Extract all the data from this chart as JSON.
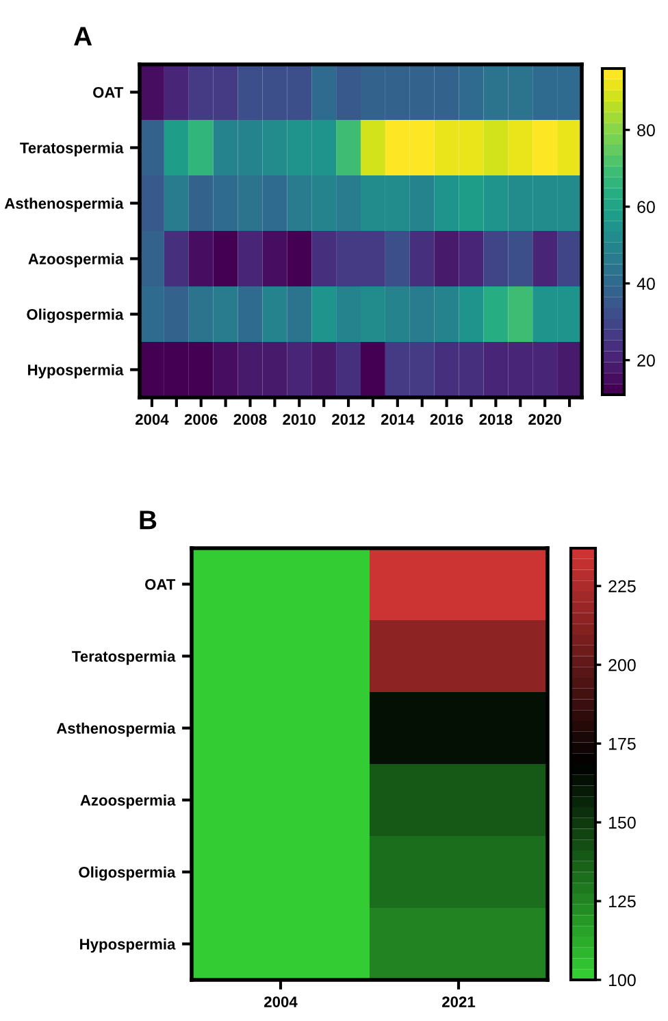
{
  "chart_data": [
    {
      "type": "heatmap",
      "title": "A",
      "categories": [
        "2004",
        null,
        "2006",
        null,
        "2008",
        null,
        "2010",
        null,
        "2012",
        null,
        "2014",
        null,
        "2016",
        null,
        "2018",
        null,
        "2020",
        null
      ],
      "y_categories": [
        "OAT",
        "Teratospermia",
        "Asthenospermia",
        "Azoospermia",
        "Oligospermia",
        "Hypospermia"
      ],
      "cells": [
        [
          15,
          22,
          26,
          27,
          32,
          33,
          33,
          42,
          35,
          37,
          37,
          37,
          37,
          41,
          43,
          44,
          40,
          40
        ],
        [
          38,
          57,
          67,
          50,
          50,
          52,
          54,
          54,
          70,
          90,
          95,
          95,
          92,
          93,
          88,
          91,
          96,
          92
        ],
        [
          36,
          45,
          38,
          41,
          43,
          40,
          46,
          49,
          46,
          51,
          51,
          49,
          55,
          58,
          56,
          53,
          52,
          52
        ],
        [
          37,
          23,
          16,
          13,
          20,
          16,
          13,
          23,
          26,
          27,
          32,
          24,
          19,
          21,
          28,
          32,
          20,
          29
        ],
        [
          41,
          38,
          44,
          46,
          42,
          49,
          43,
          54,
          49,
          53,
          49,
          46,
          50,
          55,
          62,
          69,
          54,
          55
        ],
        [
          13,
          13,
          11,
          14,
          18,
          19,
          20,
          17,
          25,
          13,
          26,
          26,
          23,
          23,
          22,
          21,
          21,
          18
        ]
      ],
      "clim": [
        11,
        96
      ],
      "cticks": [
        20,
        40,
        60,
        80
      ]
    },
    {
      "type": "heatmap",
      "title": "B",
      "categories": [
        "2004",
        "2021"
      ],
      "y_categories": [
        "OAT",
        "Teratospermia",
        "Asthenospermia",
        "Azoospermia",
        "Oligospermia",
        "Hypospermia"
      ],
      "cells": [
        [
          100,
          235
        ],
        [
          100,
          215
        ],
        [
          100,
          162
        ],
        [
          100,
          140
        ],
        [
          100,
          132
        ],
        [
          100,
          127
        ]
      ],
      "clim": [
        100,
        237
      ],
      "cticks": [
        100,
        125,
        150,
        175,
        200,
        225
      ]
    }
  ]
}
